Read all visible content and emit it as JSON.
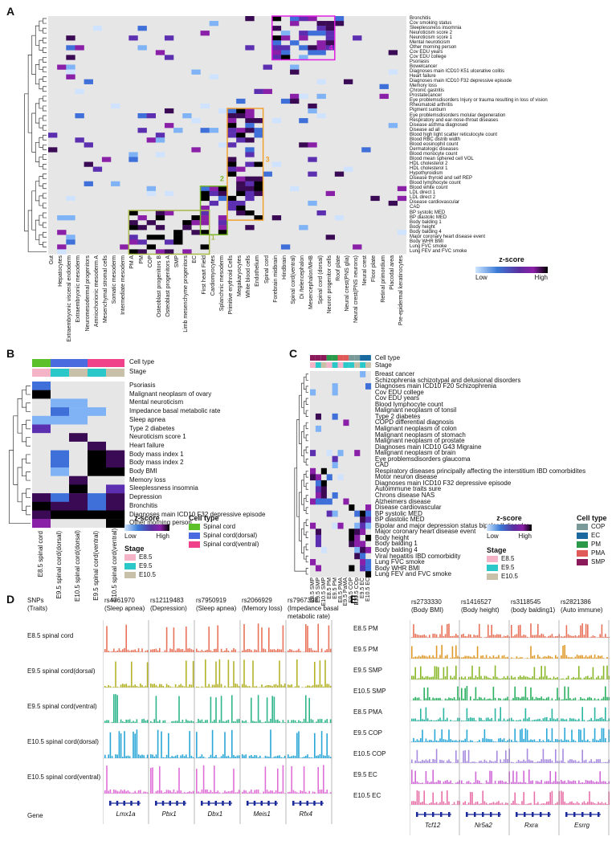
{
  "panels": {
    "A": "A",
    "B": "B",
    "C": "C",
    "D": "D",
    "E": "E"
  },
  "colors": {
    "accent1": "#8bc34a",
    "accent2": "#4caf50",
    "accent3": "#f0a030",
    "accent4": "#e020e0"
  },
  "panelA": {
    "rows": [
      "Bronchitis",
      "Cov smoking status",
      "Sleeplessness insomnia",
      "Neuroticism score 2",
      "Neuroticism score 1",
      "Mental neuroticism",
      "Other morning person",
      "Cov EDU years",
      "Cov EDU college",
      "Psoriasis",
      "Bowelcancer",
      "Diagnoses main ICD10 K51 ulcerative colitis",
      "Heart failure",
      "Diagnoses main ICD10 F32 depressive episode",
      "Memory loss",
      "Chronic gastritis",
      "Prostatecancer",
      "Eye problemsdisorders Injury or trauma resulting in loss of vision",
      "Rheumatoid arthritis",
      "Pigment sunburn",
      "Eye problemsdisorders molular degeneration",
      "Respiratory and ear-nose-throat diseases",
      "Disease asthma diagnosed",
      "Disease ad all",
      "Blood high light scatter reticulocyte count",
      "Blood RBC distrib width",
      "Blood eosinophil count",
      "Dermatologic diseases",
      "Blood monocyte count",
      "Blood mean sphered cell VOL",
      "HDL cholesterol 2",
      "HDL cholesterol 1",
      "Hypothyroidism",
      "Disease thyroid and self REP",
      "Blood lymphocyte count",
      "Blood white count",
      "LDL direct 1",
      "LDL direct 2",
      "Disease cardiovascular",
      "CAD",
      "BP systolic MED",
      "BP diastolic MED",
      "Body balding 1",
      "Body height",
      "Body balding 4",
      "Major coronary heart disease event",
      "Body WHR BMI",
      "Lung FVC smoke",
      "Lung FEV and FVC smoke"
    ],
    "cols": [
      "Gut",
      "Hepatocytes",
      "Extraembryonic visceral endoderm",
      "Extraembryonic mesoderm",
      "Neuromesodermal progenitors",
      "Amniochorionic mesoderm A",
      "Mesenchymal stromal cells",
      "Somatic mesoderm",
      "Intermediate mesoderm",
      "PM A",
      "PM",
      "COP",
      "Osteoblast progenitors B",
      "Osteoblast progenitors A",
      "SMP",
      "Limb mesenchyme progenitors",
      "EC",
      "First heart Field",
      "Cardiomyocytes",
      "Splanchnic mesoderm",
      "Primitive erythroid Cells",
      "Megakaryocytes",
      "White blood cells",
      "Endothelium",
      "Spinal cord",
      "Forebrain midbrain",
      "Hindbrain",
      "Spinal cord(ventral)",
      "Di /telencephalon",
      "Mesencephalon/MHB",
      "Spinal cord (dorsal)",
      "Neuron progenitor cells",
      "Roof plate",
      "Neural crest(PNS glia)",
      "Neural crest(PNS neurons)",
      "Neural crest",
      "Floor plate",
      "Retinal primordium",
      "Placodal area",
      "Pre-epidermal keratinocytes"
    ],
    "box_labels": [
      "1",
      "2",
      "3",
      "4"
    ],
    "legend": {
      "title": "z-score",
      "low": "Low",
      "high": "High"
    }
  },
  "panelB": {
    "header_celltype": "Cell type",
    "header_stage": "Stage",
    "rows": [
      "Psoriasis",
      "Malignant neoplasm of ovary",
      "Mental neuroticism",
      "Impedance basal metabolic rate",
      "Sleep apnea",
      "Type 2 diabetes",
      "Neuroticism score 1",
      "Heart failure",
      "Body mass index 1",
      "Body mass index 2",
      "Body BMI",
      "Memory loss",
      "Sleeplessness insomnia",
      "Depression",
      "Bronchitis",
      "Diagnoses main ICD10 F32 depressive episode",
      "Other morning person"
    ],
    "cols": [
      "E8.5 spinal cord",
      "E9.5 spinal cord(dorsal)",
      "E10.5 spinal cord(dorsal)",
      "E9.5 spinal cord(ventral)",
      "E10.5 spinal cord(ventral)"
    ],
    "legend": {
      "title": "z-score",
      "low": "Low",
      "high": "High",
      "celltype_title": "Cell type",
      "celltypes": [
        "Spinal cord",
        "Spinal cord(dorsal)",
        "Spinal cord(ventral)"
      ],
      "stage_title": "Stage",
      "stages": [
        "E8.5",
        "E9.5",
        "E10.5"
      ]
    }
  },
  "panelC": {
    "header_celltype": "Cell type",
    "header_stage": "Stage",
    "rows": [
      "Breast cancer",
      "Schizophrenia schizotypal and delusional disorders",
      "Diagnoses main ICD10 F20 Schizophrenia",
      "Cov EDU college",
      "Cov EDU years",
      "Blood lymphocyte count",
      "Malignant neoplasm of tonsil",
      "Type 2 diabetes",
      "COPD differential diagnosis",
      "Malignant neoplasm of colon",
      "Malignant neoplasm of stomach",
      "Malignant neoplasm of prostate",
      "Diagnoses main ICD10 G43 Migraine",
      "Malignant neoplasm of brain",
      "Eye problemsdisorders glaucoma",
      "CAD",
      "Respiratory diseases principally affecting the interstitium IBD comorbidites",
      "Motor neuron disease",
      "Diagnoses main ICD10 F32 depressive episode",
      "Autoimmune traits sure",
      "Chrons disease NAS",
      "Alzheimers disease",
      "Disease cardiovascular",
      "BP systolic MED",
      "BP diastolic MED",
      "Bipolar and major depression status bipolar II disorder",
      "Major coronary heart disease event",
      "Body height",
      "Body balding 1",
      "Body balding 4",
      "Viral hepatitis IBD comorbidity",
      "Lung FVC smoke",
      "Body WHR BMI",
      "Lung FEV and FVC smoke"
    ],
    "cols": [
      "E8.5 SMP",
      "E9.5 SMP",
      "E10.5 SMP",
      "E8.5 PM",
      "E9.5 PM",
      "E8.5 PMA",
      "E9.5 PaMA",
      "E9.5 COP",
      "E10.5 COp",
      "E9.5 EC",
      "E10.5 EC"
    ],
    "legend": {
      "title": "z-score",
      "low": "Low",
      "high": "High",
      "celltype_title": "Cell type",
      "celltypes": [
        "COP",
        "EC",
        "PM",
        "PMA",
        "SMP"
      ],
      "stage_title": "Stage",
      "stages": [
        "E8.5",
        "E9.5",
        "E10.5"
      ]
    }
  },
  "panelD": {
    "snps_label": "SNPs",
    "traits_label": "(Traits)",
    "snps": [
      {
        "id": "rs4361970",
        "trait": "(Sleep apnea)"
      },
      {
        "id": "rs12119483",
        "trait": "(Depression)"
      },
      {
        "id": "rs7950919",
        "trait": "(Sleep apnea)"
      },
      {
        "id": "rs2066929",
        "trait": "(Memory loss)"
      },
      {
        "id": "rs7967398",
        "trait": "(Impedance basal",
        "trait2": "metabolic rate)"
      }
    ],
    "tracks": [
      {
        "label": "E8.5 spinal cord",
        "color": "#e8735a"
      },
      {
        "label": "E9.5 spinal cord(dorsal)",
        "color": "#b5b32a"
      },
      {
        "label": "E9.5 spinal cord(ventral)",
        "color": "#2fb58a"
      },
      {
        "label": "E10.5 spinal cord(dorsal)",
        "color": "#2aa7d6"
      },
      {
        "label": "E10.5 spinal cord(ventral)",
        "color": "#e070d8"
      }
    ],
    "gene_label": "Gene",
    "genes": [
      "Lmx1a",
      "Pbx1",
      "Dbx1",
      "Meis1",
      "Rfx4"
    ]
  },
  "panelE": {
    "snps": [
      {
        "id": "rs2733330",
        "trait": "(Body BMI)"
      },
      {
        "id": "rs1416527",
        "trait": "(Body height)"
      },
      {
        "id": "rs3118545",
        "trait": "(body balding1)"
      },
      {
        "id": "rs2821386",
        "trait": "(Auto immune)"
      }
    ],
    "tracks": [
      {
        "label": "E8.5 PM",
        "color": "#e8735a"
      },
      {
        "label": "E9.5 PM",
        "color": "#e09a2a"
      },
      {
        "label": "E9.5 SMP",
        "color": "#8ab82a"
      },
      {
        "label": "E10.5 SMP",
        "color": "#2ab060"
      },
      {
        "label": "E8.5 PMA",
        "color": "#2ab5a0"
      },
      {
        "label": "E9.5 COP",
        "color": "#2aa8d8"
      },
      {
        "label": "E10.5 COP",
        "color": "#a78be0"
      },
      {
        "label": "E9.5 EC",
        "color": "#d068d8"
      },
      {
        "label": "E10.5 EC",
        "color": "#e870a8"
      }
    ],
    "genes": [
      "Tcf12",
      "Nr5a2",
      "Rxra",
      "Esrrg"
    ]
  }
}
